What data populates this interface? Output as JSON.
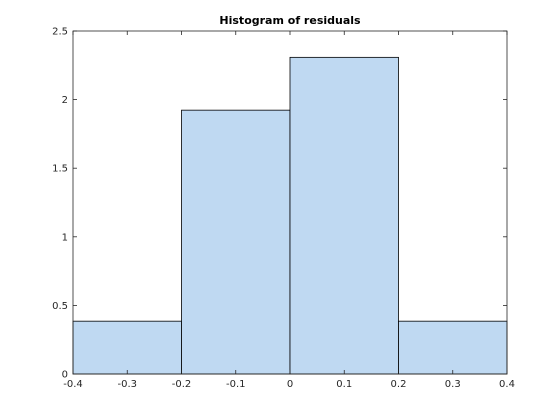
{
  "chart_data": {
    "type": "bar",
    "title": "Histogram of residuals",
    "xlabel": "",
    "ylabel": "",
    "bin_edges": [
      -0.4,
      -0.2,
      0,
      0.2,
      0.4
    ],
    "values": [
      0.385,
      1.923,
      2.308,
      0.385
    ],
    "xlim": [
      -0.4,
      0.4
    ],
    "ylim": [
      0,
      2.5
    ],
    "x_ticks": [
      -0.4,
      -0.3,
      -0.2,
      -0.1,
      0,
      0.1,
      0.2,
      0.3,
      0.4
    ],
    "x_tick_labels": [
      "-0.4",
      "-0.3",
      "-0.2",
      "-0.1",
      "0",
      "0.1",
      "0.2",
      "0.3",
      "0.4"
    ],
    "y_ticks": [
      0,
      0.5,
      1,
      1.5,
      2,
      2.5
    ],
    "y_tick_labels": [
      "0",
      "0.5",
      "1",
      "1.5",
      "2",
      "2.5"
    ],
    "grid": false,
    "legend": "none",
    "bar_color": "#bfd9f2",
    "bar_edge_color": "#000000"
  }
}
